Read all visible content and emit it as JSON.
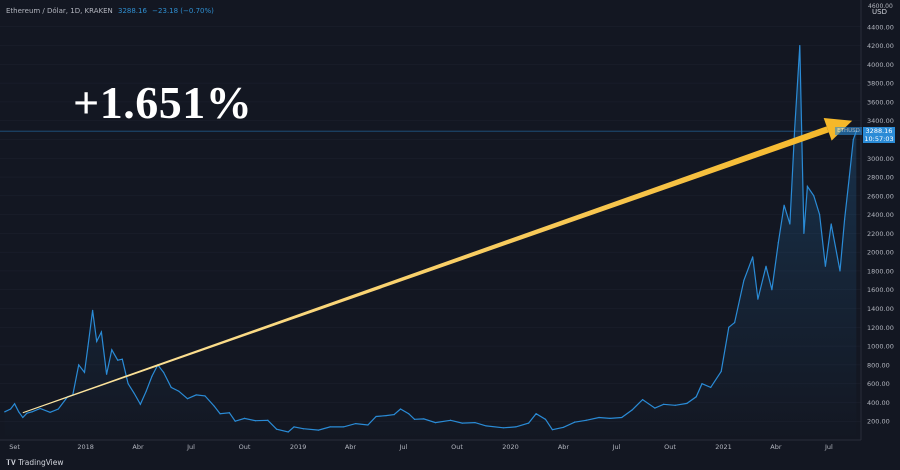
{
  "header": {
    "symbol": "Ethereum / Dólar, 1D, KRAKEN",
    "price": "3288.16",
    "change": "−23.18 (−0.70%)"
  },
  "headline": "+1.651%",
  "currency_label": "USD",
  "top_tick": "4600.00",
  "last_price_label": {
    "value": "3288.16",
    "time": "10:57:03",
    "tag": "ETHUSD"
  },
  "brand": {
    "logo_text": "TradingView"
  },
  "colors": {
    "background": "#131722",
    "line": "#2a8bd6",
    "arrow_start": "#fde7a6",
    "arrow_end": "#f5b82a",
    "grid": "#1e2230"
  },
  "chart_data": {
    "type": "line",
    "series": [
      {
        "values": [
          [
            "2017-08-15",
            300
          ],
          [
            "2017-08-25",
            330
          ],
          [
            "2017-09-01",
            385
          ],
          [
            "2017-09-08",
            300
          ],
          [
            "2017-09-15",
            240
          ],
          [
            "2017-09-22",
            285
          ],
          [
            "2017-10-01",
            300
          ],
          [
            "2017-10-15",
            335
          ],
          [
            "2017-11-01",
            295
          ],
          [
            "2017-11-15",
            330
          ],
          [
            "2017-12-01",
            460
          ],
          [
            "2017-12-10",
            480
          ],
          [
            "2017-12-20",
            800
          ],
          [
            "2017-12-30",
            720
          ],
          [
            "2018-01-05",
            1000
          ],
          [
            "2018-01-13",
            1380
          ],
          [
            "2018-01-20",
            1050
          ],
          [
            "2018-01-28",
            1150
          ],
          [
            "2018-02-06",
            700
          ],
          [
            "2018-02-15",
            960
          ],
          [
            "2018-02-25",
            850
          ],
          [
            "2018-03-05",
            860
          ],
          [
            "2018-03-15",
            600
          ],
          [
            "2018-03-25",
            500
          ],
          [
            "2018-04-05",
            380
          ],
          [
            "2018-04-15",
            520
          ],
          [
            "2018-04-25",
            680
          ],
          [
            "2018-05-05",
            800
          ],
          [
            "2018-05-15",
            720
          ],
          [
            "2018-05-28",
            560
          ],
          [
            "2018-06-10",
            520
          ],
          [
            "2018-06-25",
            440
          ],
          [
            "2018-07-10",
            480
          ],
          [
            "2018-07-25",
            470
          ],
          [
            "2018-08-10",
            360
          ],
          [
            "2018-08-20",
            280
          ],
          [
            "2018-09-05",
            290
          ],
          [
            "2018-09-15",
            200
          ],
          [
            "2018-10-01",
            230
          ],
          [
            "2018-10-20",
            205
          ],
          [
            "2018-11-10",
            210
          ],
          [
            "2018-11-25",
            115
          ],
          [
            "2018-12-15",
            85
          ],
          [
            "2018-12-25",
            140
          ],
          [
            "2019-01-10",
            120
          ],
          [
            "2019-02-05",
            105
          ],
          [
            "2019-02-25",
            140
          ],
          [
            "2019-03-20",
            140
          ],
          [
            "2019-04-10",
            175
          ],
          [
            "2019-05-01",
            160
          ],
          [
            "2019-05-15",
            250
          ],
          [
            "2019-06-01",
            260
          ],
          [
            "2019-06-15",
            270
          ],
          [
            "2019-06-26",
            330
          ],
          [
            "2019-07-10",
            280
          ],
          [
            "2019-07-20",
            220
          ],
          [
            "2019-08-05",
            225
          ],
          [
            "2019-08-25",
            185
          ],
          [
            "2019-09-20",
            210
          ],
          [
            "2019-10-10",
            180
          ],
          [
            "2019-11-01",
            185
          ],
          [
            "2019-11-20",
            150
          ],
          [
            "2019-12-20",
            130
          ],
          [
            "2020-01-10",
            140
          ],
          [
            "2020-02-01",
            180
          ],
          [
            "2020-02-14",
            280
          ],
          [
            "2020-03-01",
            220
          ],
          [
            "2020-03-13",
            110
          ],
          [
            "2020-04-01",
            135
          ],
          [
            "2020-04-20",
            190
          ],
          [
            "2020-05-10",
            210
          ],
          [
            "2020-06-01",
            240
          ],
          [
            "2020-06-20",
            230
          ],
          [
            "2020-07-10",
            240
          ],
          [
            "2020-07-28",
            320
          ],
          [
            "2020-08-15",
            430
          ],
          [
            "2020-09-05",
            340
          ],
          [
            "2020-09-20",
            380
          ],
          [
            "2020-10-10",
            370
          ],
          [
            "2020-10-30",
            390
          ],
          [
            "2020-11-15",
            460
          ],
          [
            "2020-11-25",
            600
          ],
          [
            "2020-12-10",
            560
          ],
          [
            "2020-12-28",
            730
          ],
          [
            "2021-01-10",
            1200
          ],
          [
            "2021-01-20",
            1250
          ],
          [
            "2021-02-05",
            1700
          ],
          [
            "2021-02-20",
            1950
          ],
          [
            "2021-03-01",
            1500
          ],
          [
            "2021-03-15",
            1850
          ],
          [
            "2021-03-25",
            1600
          ],
          [
            "2021-04-05",
            2100
          ],
          [
            "2021-04-15",
            2500
          ],
          [
            "2021-04-25",
            2300
          ],
          [
            "2021-05-03",
            3300
          ],
          [
            "2021-05-12",
            4200
          ],
          [
            "2021-05-19",
            2200
          ],
          [
            "2021-05-25",
            2700
          ],
          [
            "2021-06-05",
            2600
          ],
          [
            "2021-06-15",
            2400
          ],
          [
            "2021-06-25",
            1850
          ],
          [
            "2021-07-05",
            2300
          ],
          [
            "2021-07-20",
            1800
          ],
          [
            "2021-07-28",
            2350
          ],
          [
            "2021-08-05",
            2800
          ],
          [
            "2021-08-12",
            3200
          ],
          [
            "2021-08-17",
            3288
          ]
        ]
      }
    ],
    "x_ticks": [
      "Set",
      "2018",
      "Abr",
      "Jul",
      "Out",
      "2019",
      "Abr",
      "Jul",
      "Out",
      "2020",
      "Abr",
      "Jul",
      "Out",
      "2021",
      "Abr",
      "Jul"
    ],
    "x_tick_dates": [
      "2017-09-01",
      "2018-01-01",
      "2018-04-01",
      "2018-07-01",
      "2018-10-01",
      "2019-01-01",
      "2019-04-01",
      "2019-07-01",
      "2019-10-01",
      "2020-01-01",
      "2020-04-01",
      "2020-07-01",
      "2020-10-01",
      "2021-01-01",
      "2021-04-01",
      "2021-07-01"
    ],
    "y_ticks": [
      200,
      400,
      600,
      800,
      1000,
      1200,
      1400,
      1600,
      1800,
      2000,
      2200,
      2400,
      2600,
      2800,
      3000,
      3200,
      3400,
      3600,
      3800,
      4000,
      4200,
      4400
    ],
    "ylim": [
      0,
      4600
    ],
    "arrow": {
      "from": [
        "2017-09-15",
        290
      ],
      "to": [
        "2021-08-10",
        3400
      ]
    },
    "last_price_line": 3288.16
  }
}
